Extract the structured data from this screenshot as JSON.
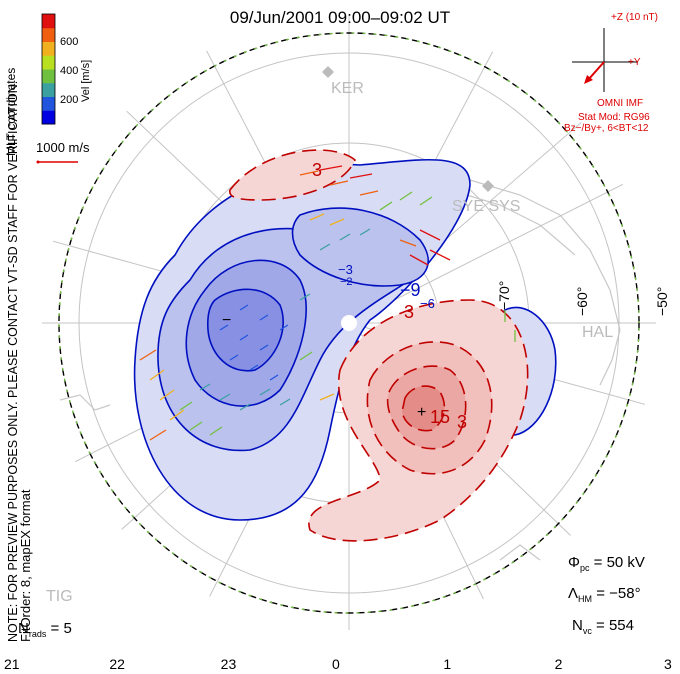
{
  "header": {
    "title": "09/Jun/2001 09:00–09:02 UT"
  },
  "side_notes": {
    "mlt": "MLT coordinates",
    "preview": "NOTE: FOR PREVIEW PURPOSES ONLY. PLEASE CONTACT VT-SD STAFF FOR VERIFICATION.",
    "fitorder": "FitOrder: 8, mapEX format"
  },
  "color_bar": {
    "label": "Vel [m/s]",
    "ticks": [
      "600",
      "400",
      "200"
    ],
    "colors": [
      "#0000e0",
      "#2255dd",
      "#3aa0a0",
      "#70c040",
      "#b8e020",
      "#f0b020",
      "#f06010",
      "#e01010"
    ]
  },
  "vector_scale": {
    "label": "1000 m/s"
  },
  "imf": {
    "z_label": "+Z (10 nT)",
    "y_label": "+Y",
    "source": "OMNI IMF",
    "model": "Stat Mod: RG96",
    "condition": "Bz−/By+, 6<BT<12"
  },
  "stations": [
    "KER",
    "SYE SYS",
    "HAL",
    "TIG"
  ],
  "latitude_labels": [
    "−70°",
    "−60°",
    "−50°"
  ],
  "mlt_axis": [
    "21",
    "22",
    "23",
    "0",
    "1",
    "2",
    "3"
  ],
  "contour_labels": [
    "3",
    "−9",
    "−3",
    "3",
    "−6",
    "−2",
    "15",
    "3"
  ],
  "stats": {
    "phi_pc": {
      "symbol": "Φ",
      "sub": "pc",
      "value": "= 50 kV"
    },
    "lambda_hm": {
      "symbol": "Λ",
      "sub": "HM",
      "value": "= −58°"
    },
    "n_vc": {
      "symbol": "N",
      "sub": "vc",
      "value": "= 554"
    },
    "n_rads": {
      "symbol": "N",
      "sub": "rads",
      "value": "= 5"
    }
  },
  "colors": {
    "negative_cell": "#4050e0",
    "positive_cell": "#e04040",
    "neg_line": "#0010c0",
    "pos_line": "#c00000",
    "grid": "#c0c0c0"
  }
}
